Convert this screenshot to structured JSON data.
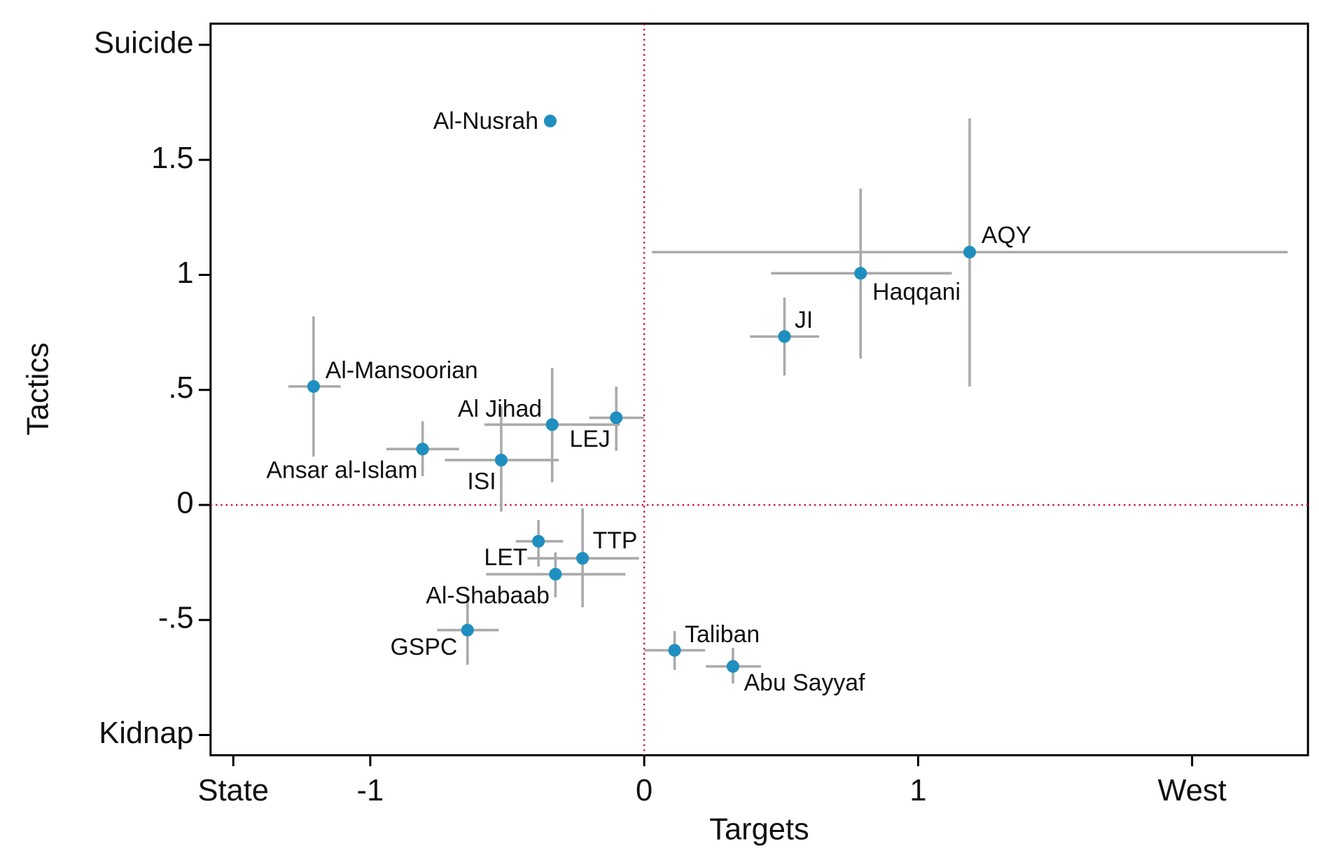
{
  "chart_data": {
    "type": "scatter",
    "x_label": "Targets",
    "y_label": "Tactics",
    "xlim": [
      -1.583,
      2.423
    ],
    "ylim": [
      -1.088,
      2.092
    ],
    "xticks": [
      {
        "value": -1.5,
        "label": "State"
      },
      -1,
      0,
      1,
      {
        "value": 2,
        "label": "West"
      }
    ],
    "yticks": [
      {
        "value": -1,
        "label": "Kidnap"
      },
      {
        "value": -0.5,
        "label": "-.5"
      },
      0,
      {
        "value": 0.5,
        "label": ".5"
      },
      1,
      1.5,
      {
        "value": 2,
        "label": "Suicide"
      }
    ],
    "xline": 0,
    "yline": 0,
    "reference_color": "#d0103a",
    "color": "#1f8fbf",
    "error_color": "#aaaaaa",
    "labels": [
      "Al-Nusrah",
      "AQY",
      "Haqqani",
      "JI",
      "Al-Mansoorian",
      "Al Jihad",
      "LEJ",
      "Ansar al-Islam",
      "ISI",
      "LET",
      "TTP",
      "Al-Shabaab",
      "GSPC",
      "Taliban",
      "Abu Sayyaf"
    ],
    "x": [
      -0.343,
      1.188,
      0.79,
      0.512,
      -1.207,
      -0.336,
      -0.102,
      -0.809,
      -0.522,
      -0.386,
      -0.225,
      -0.324,
      -0.645,
      0.111,
      0.324
    ],
    "y": [
      1.669,
      1.099,
      1.007,
      0.732,
      0.515,
      0.349,
      0.379,
      0.243,
      0.195,
      -0.158,
      -0.232,
      -0.301,
      -0.544,
      -0.632,
      -0.702
    ],
    "x_low": [
      null,
      0.028,
      0.463,
      0.386,
      -1.299,
      -0.583,
      -0.201,
      -0.941,
      -0.728,
      -0.469,
      -0.426,
      -0.577,
      -0.756,
      0.0,
      0.225
    ],
    "x_high": [
      null,
      2.349,
      1.123,
      0.639,
      -1.108,
      -0.089,
      0.0,
      -0.676,
      -0.312,
      -0.296,
      -0.019,
      -0.068,
      -0.531,
      0.222,
      0.426
    ],
    "y_low": [
      null,
      0.515,
      0.636,
      0.563,
      0.21,
      0.099,
      0.235,
      0.125,
      -0.029,
      -0.268,
      -0.445,
      -0.401,
      -0.695,
      -0.717,
      -0.776
    ],
    "y_high": [
      null,
      1.68,
      1.375,
      0.901,
      0.82,
      0.596,
      0.515,
      0.364,
      0.43,
      -0.066,
      -0.015,
      -0.206,
      -0.397,
      -0.548,
      -0.621
    ]
  }
}
